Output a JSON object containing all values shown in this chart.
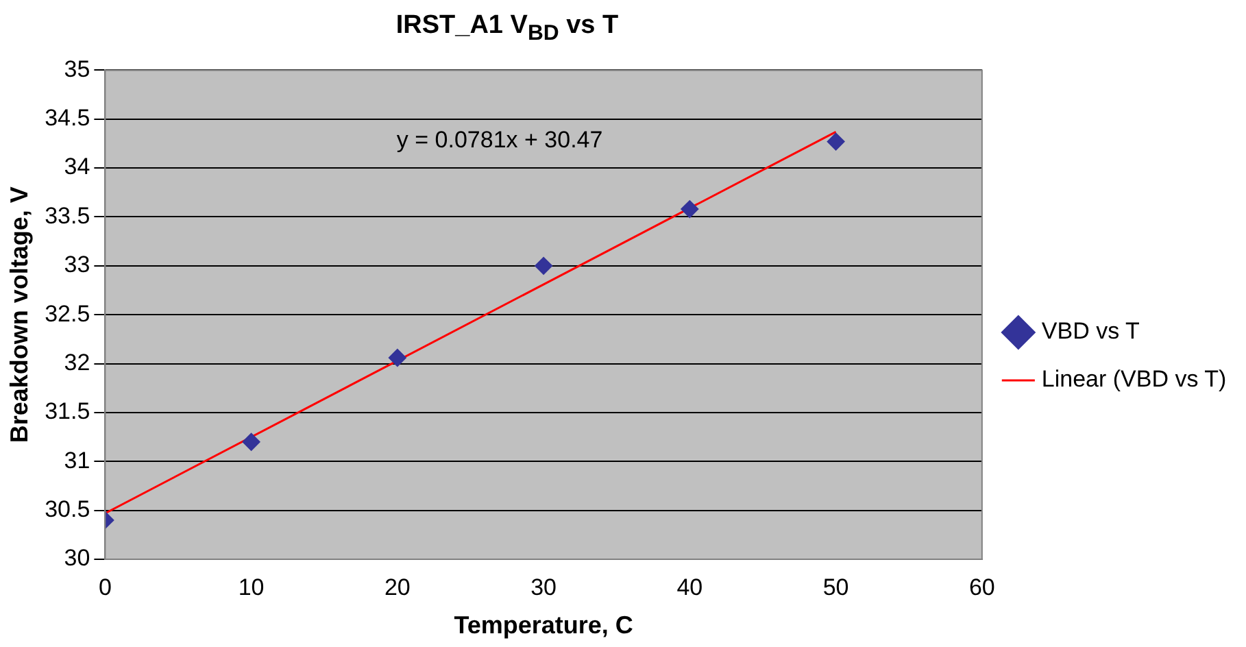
{
  "chart_data": {
    "type": "scatter",
    "title": "IRST_A1 V$_{BD}$ vs T",
    "xlabel": "Temperature, C",
    "ylabel": "Breakdown voltage, V",
    "x": [
      0,
      10,
      20,
      30,
      40,
      50
    ],
    "series": [
      {
        "name": "VBD vs T",
        "color": "#333399",
        "values": [
          30.4,
          31.2,
          32.06,
          33.0,
          33.58,
          34.27
        ],
        "marker": "diamond"
      },
      {
        "name": "Linear (VBD vs T)",
        "type": "line",
        "color": "#ff0000",
        "x": [
          0,
          50
        ],
        "values": [
          30.47,
          34.37
        ],
        "marker": "none",
        "line_style": "solid"
      }
    ],
    "xlim": [
      0,
      60
    ],
    "xticks": [
      0,
      10,
      20,
      30,
      40,
      50,
      60
    ],
    "ylim": [
      30,
      35
    ],
    "yticks": [
      30,
      30.5,
      31,
      31.5,
      32,
      32.5,
      33,
      33.5,
      34,
      34.5,
      35
    ],
    "grid": "y",
    "legend": "right",
    "annotations": [
      "y = 0.0781x + 30.47"
    ]
  }
}
